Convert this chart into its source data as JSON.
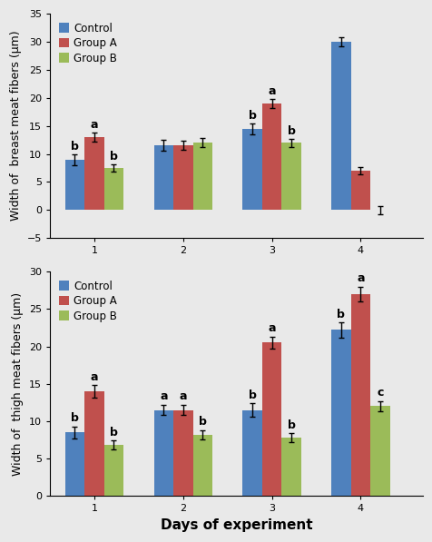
{
  "top_chart": {
    "ylabel": "Width of  breast meat fibers (μm)",
    "days": [
      1,
      2,
      3,
      4
    ],
    "control": [
      9.0,
      11.5,
      14.5,
      30.0
    ],
    "group_a": [
      13.0,
      11.5,
      19.0,
      7.0
    ],
    "group_b": [
      7.5,
      12.0,
      12.0,
      0.0
    ],
    "control_err": [
      1.0,
      1.0,
      1.0,
      0.8
    ],
    "group_a_err": [
      0.8,
      0.8,
      0.8,
      0.7
    ],
    "group_b_err": [
      0.7,
      0.8,
      0.7,
      0.7
    ],
    "ylim": [
      -5,
      35
    ],
    "yticks": [
      -5,
      0,
      5,
      10,
      15,
      20,
      25,
      30,
      35
    ],
    "letters_control": [
      "b",
      "",
      "b",
      ""
    ],
    "letters_group_a": [
      "a",
      "",
      "a",
      ""
    ],
    "letters_group_b": [
      "b",
      "",
      "b",
      ""
    ]
  },
  "bottom_chart": {
    "ylabel": "Width of  thigh meat fibers (μm)",
    "days": [
      1,
      2,
      3,
      4
    ],
    "control": [
      8.5,
      11.5,
      11.5,
      22.2
    ],
    "group_a": [
      14.0,
      11.5,
      20.5,
      27.0
    ],
    "group_b": [
      6.8,
      8.2,
      7.8,
      12.0
    ],
    "control_err": [
      0.8,
      0.7,
      0.9,
      1.0
    ],
    "group_a_err": [
      0.8,
      0.7,
      0.8,
      1.0
    ],
    "group_b_err": [
      0.6,
      0.6,
      0.6,
      0.7
    ],
    "ylim": [
      0,
      30
    ],
    "yticks": [
      0,
      5,
      10,
      15,
      20,
      25,
      30
    ],
    "letters_control": [
      "b",
      "a",
      "b",
      "b"
    ],
    "letters_group_a": [
      "a",
      "a",
      "a",
      "a"
    ],
    "letters_group_b": [
      "b",
      "b",
      "b",
      "c"
    ]
  },
  "colors": {
    "control": "#4F81BD",
    "group_a": "#C0504D",
    "group_b": "#9BBB59"
  },
  "bar_width": 0.22,
  "xlabel": "Days of experiment",
  "bg_color": "#E9E9E9",
  "fontsize_ylabel": 9,
  "fontsize_ticks": 8,
  "fontsize_letters": 9,
  "fontsize_xlabel": 11
}
